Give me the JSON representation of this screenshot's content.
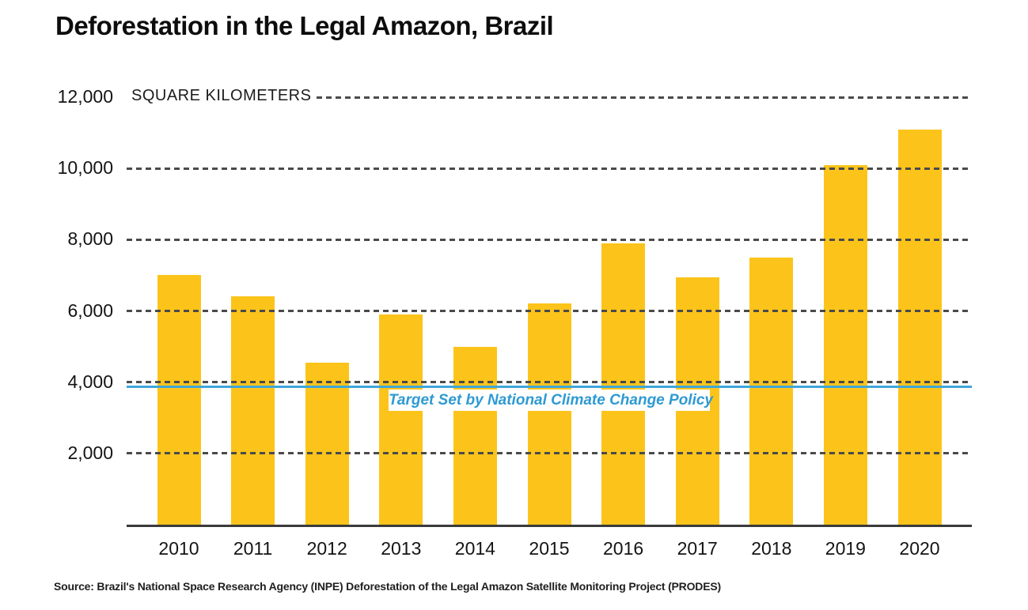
{
  "title": "Deforestation in the Legal Amazon, Brazil",
  "source": "Source: Brazil's National Space Research Agency (INPE) Deforestation of the Legal Amazon Satellite Monitoring Project (PRODES)",
  "chart_data": {
    "type": "bar",
    "title": "Deforestation in the Legal Amazon, Brazil",
    "unit_label": "SQUARE KILOMETERS",
    "categories": [
      "2010",
      "2011",
      "2012",
      "2013",
      "2014",
      "2015",
      "2016",
      "2017",
      "2018",
      "2019",
      "2020"
    ],
    "values": [
      7000,
      6400,
      4550,
      5900,
      5000,
      6200,
      7900,
      6950,
      7500,
      10100,
      11100
    ],
    "xlabel": "",
    "ylabel": "SQUARE KILOMETERS",
    "ylim": [
      0,
      12000
    ],
    "yticks": [
      2000,
      4000,
      6000,
      8000,
      10000,
      12000
    ],
    "ytick_labels": [
      "2,000",
      "4,000",
      "6,000",
      "8,000",
      "10,000",
      "12,000"
    ],
    "grid": "horizontal dashed",
    "legend": "none",
    "bar_color": "#FCC41A",
    "grid_color": "#4a4a4a",
    "target_line": {
      "value": 3860,
      "label": "Target Set by National Climate Change Policy",
      "color": "#3FA6D9",
      "label_color": "#2E9AD2"
    }
  }
}
